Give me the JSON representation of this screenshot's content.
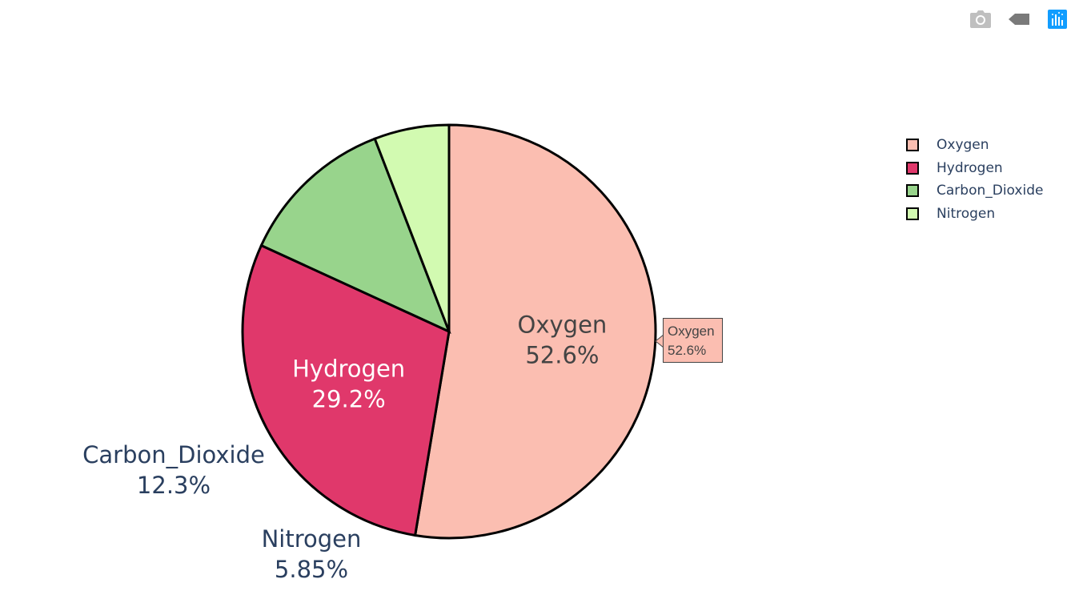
{
  "chart_data": {
    "type": "pie",
    "labels": [
      "Oxygen",
      "Hydrogen",
      "Carbon_Dioxide",
      "Nitrogen"
    ],
    "percent_labels": [
      "52.6%",
      "29.2%",
      "12.3%",
      "5.85%"
    ],
    "values": [
      52.6,
      29.2,
      12.3,
      5.85
    ],
    "colors": [
      "#fbbeb1",
      "#e0386b",
      "#98d48c",
      "#d2fab1"
    ],
    "label_colors": [
      "#444444",
      "#ffffff",
      "#2a3f5f",
      "#2a3f5f"
    ],
    "direction": "clockwise",
    "start_angle_deg": 90,
    "legend_position": "top-right"
  },
  "hover": {
    "label": "Oxygen",
    "value": "52.6%"
  },
  "modebar": {
    "icons": [
      "camera-icon",
      "tag-icon",
      "plotly-logo-icon"
    ]
  }
}
